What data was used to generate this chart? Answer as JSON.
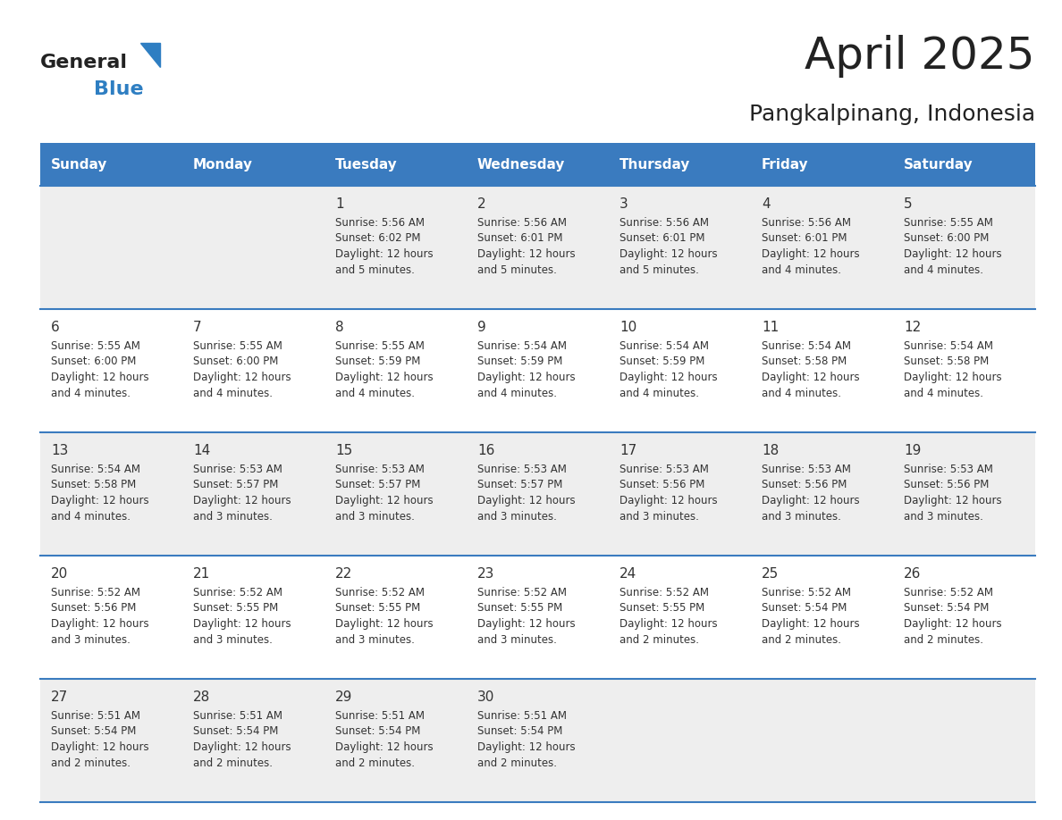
{
  "title": "April 2025",
  "subtitle": "Pangkalpinang, Indonesia",
  "days_of_week": [
    "Sunday",
    "Monday",
    "Tuesday",
    "Wednesday",
    "Thursday",
    "Friday",
    "Saturday"
  ],
  "header_bg": "#3a7bbf",
  "header_text": "#ffffff",
  "row_bg_light": "#eeeeee",
  "row_bg_white": "#ffffff",
  "separator_color": "#3a7bbf",
  "text_color": "#333333",
  "title_color": "#222222",
  "cal_data": [
    [
      "",
      "",
      "1\nSunrise: 5:56 AM\nSunset: 6:02 PM\nDaylight: 12 hours\nand 5 minutes.",
      "2\nSunrise: 5:56 AM\nSunset: 6:01 PM\nDaylight: 12 hours\nand 5 minutes.",
      "3\nSunrise: 5:56 AM\nSunset: 6:01 PM\nDaylight: 12 hours\nand 5 minutes.",
      "4\nSunrise: 5:56 AM\nSunset: 6:01 PM\nDaylight: 12 hours\nand 4 minutes.",
      "5\nSunrise: 5:55 AM\nSunset: 6:00 PM\nDaylight: 12 hours\nand 4 minutes."
    ],
    [
      "6\nSunrise: 5:55 AM\nSunset: 6:00 PM\nDaylight: 12 hours\nand 4 minutes.",
      "7\nSunrise: 5:55 AM\nSunset: 6:00 PM\nDaylight: 12 hours\nand 4 minutes.",
      "8\nSunrise: 5:55 AM\nSunset: 5:59 PM\nDaylight: 12 hours\nand 4 minutes.",
      "9\nSunrise: 5:54 AM\nSunset: 5:59 PM\nDaylight: 12 hours\nand 4 minutes.",
      "10\nSunrise: 5:54 AM\nSunset: 5:59 PM\nDaylight: 12 hours\nand 4 minutes.",
      "11\nSunrise: 5:54 AM\nSunset: 5:58 PM\nDaylight: 12 hours\nand 4 minutes.",
      "12\nSunrise: 5:54 AM\nSunset: 5:58 PM\nDaylight: 12 hours\nand 4 minutes."
    ],
    [
      "13\nSunrise: 5:54 AM\nSunset: 5:58 PM\nDaylight: 12 hours\nand 4 minutes.",
      "14\nSunrise: 5:53 AM\nSunset: 5:57 PM\nDaylight: 12 hours\nand 3 minutes.",
      "15\nSunrise: 5:53 AM\nSunset: 5:57 PM\nDaylight: 12 hours\nand 3 minutes.",
      "16\nSunrise: 5:53 AM\nSunset: 5:57 PM\nDaylight: 12 hours\nand 3 minutes.",
      "17\nSunrise: 5:53 AM\nSunset: 5:56 PM\nDaylight: 12 hours\nand 3 minutes.",
      "18\nSunrise: 5:53 AM\nSunset: 5:56 PM\nDaylight: 12 hours\nand 3 minutes.",
      "19\nSunrise: 5:53 AM\nSunset: 5:56 PM\nDaylight: 12 hours\nand 3 minutes."
    ],
    [
      "20\nSunrise: 5:52 AM\nSunset: 5:56 PM\nDaylight: 12 hours\nand 3 minutes.",
      "21\nSunrise: 5:52 AM\nSunset: 5:55 PM\nDaylight: 12 hours\nand 3 minutes.",
      "22\nSunrise: 5:52 AM\nSunset: 5:55 PM\nDaylight: 12 hours\nand 3 minutes.",
      "23\nSunrise: 5:52 AM\nSunset: 5:55 PM\nDaylight: 12 hours\nand 3 minutes.",
      "24\nSunrise: 5:52 AM\nSunset: 5:55 PM\nDaylight: 12 hours\nand 2 minutes.",
      "25\nSunrise: 5:52 AM\nSunset: 5:54 PM\nDaylight: 12 hours\nand 2 minutes.",
      "26\nSunrise: 5:52 AM\nSunset: 5:54 PM\nDaylight: 12 hours\nand 2 minutes."
    ],
    [
      "27\nSunrise: 5:51 AM\nSunset: 5:54 PM\nDaylight: 12 hours\nand 2 minutes.",
      "28\nSunrise: 5:51 AM\nSunset: 5:54 PM\nDaylight: 12 hours\nand 2 minutes.",
      "29\nSunrise: 5:51 AM\nSunset: 5:54 PM\nDaylight: 12 hours\nand 2 minutes.",
      "30\nSunrise: 5:51 AM\nSunset: 5:54 PM\nDaylight: 12 hours\nand 2 minutes.",
      "",
      "",
      ""
    ]
  ],
  "logo_general_color": "#222222",
  "logo_blue_color": "#2e7ec2",
  "fig_width": 11.88,
  "fig_height": 9.18,
  "dpi": 100
}
